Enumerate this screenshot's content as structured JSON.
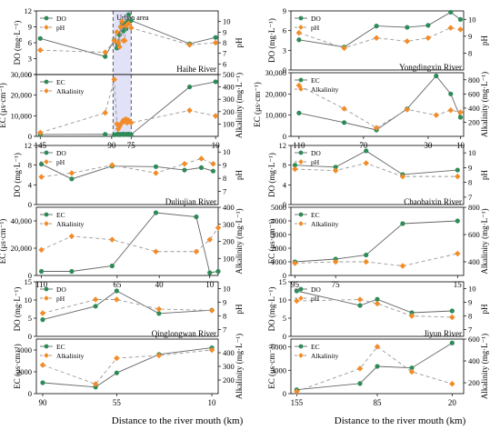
{
  "xlabel": "Distance to the river mouth (km)",
  "colors": {
    "do": "#2e8b57",
    "ph": "#f28c28",
    "line_do": "#666666",
    "line_ph": "#999999",
    "urban": "#c9c9f3"
  },
  "chart_data": [
    {
      "type": "line",
      "river": "Haihe River",
      "annotation": "Urban area",
      "urban_range": [
        89,
        75
      ],
      "xticks": [
        145,
        90,
        75,
        10
      ],
      "xlim": [
        148,
        8
      ],
      "top": {
        "ylabel_left": "DO (mg·L⁻¹)",
        "ylabel_right": "pH",
        "ylim_left": [
          0,
          12
        ],
        "ylim_right": [
          5,
          11
        ],
        "ticks_left": [
          0,
          3,
          6,
          9,
          12
        ],
        "ticks_right": [
          6,
          7,
          8,
          9,
          10
        ],
        "series": [
          {
            "name": "DO",
            "x": [
              145,
              95,
              88,
              86,
              85,
              84,
              83,
              82,
              81,
              80,
              79,
              78,
              77,
              75,
              30,
              10
            ],
            "values": [
              6.8,
              3.4,
              6.5,
              5.0,
              5.6,
              7.5,
              9.0,
              9.8,
              8.2,
              9.6,
              8.6,
              9.9,
              11.3,
              10.2,
              5.8,
              7.0
            ]
          },
          {
            "name": "pH",
            "x": [
              145,
              95,
              88,
              86,
              85,
              84,
              83,
              82,
              81,
              80,
              79,
              78,
              77,
              75,
              30,
              10
            ],
            "values": [
              7.3,
              7.1,
              8.2,
              9.0,
              8.0,
              7.6,
              9.5,
              10.0,
              8.2,
              8.2,
              9.6,
              9.7,
              9.8,
              9.4,
              7.8,
              8.0
            ]
          }
        ]
      },
      "bottom": {
        "ylabel_left": "EC (μs·cm⁻¹)",
        "ylabel_right": "Alkalinity (mg·L⁻¹)",
        "ylim_left": [
          0,
          30000
        ],
        "ylim_right": [
          0,
          500
        ],
        "ticks_left": [
          0,
          10000,
          20000,
          30000
        ],
        "ticks_left_labels": [
          "0",
          "10,000",
          "20,000",
          "30,000"
        ],
        "ticks_right": [
          100,
          200,
          300,
          400,
          500
        ],
        "series": [
          {
            "name": "EC",
            "x": [
              145,
              95,
              88,
              86,
              85,
              84,
              83,
              82,
              81,
              80,
              79,
              78,
              77,
              75,
              30,
              10
            ],
            "values": [
              900,
              1000,
              800,
              900,
              1100,
              800,
              1000,
              900,
              1100,
              900,
              1000,
              1000,
              1100,
              900,
              24000,
              26500
            ]
          },
          {
            "name": "Alkalinity",
            "x": [
              145,
              95,
              88,
              86,
              85,
              84,
              83,
              82,
              81,
              80,
              79,
              78,
              77,
              75,
              30,
              10
            ],
            "values": [
              30,
              190,
              460,
              100,
              60,
              80,
              100,
              110,
              130,
              120,
              140,
              110,
              130,
              110,
              210,
              165
            ]
          }
        ]
      }
    },
    {
      "type": "line",
      "river": "Yongdingxin River",
      "xticks": [
        110,
        70,
        30,
        10
      ],
      "xlim": [
        115,
        8
      ],
      "top": {
        "ylabel_left": "DO (mg·L⁻¹)",
        "ylabel_right": "pH",
        "ylim_left": [
          0,
          9
        ],
        "ylim_right": [
          7,
          10.5
        ],
        "ticks_left": [
          0,
          3,
          6,
          9
        ],
        "ticks_right": [
          8,
          9,
          10
        ],
        "series": [
          {
            "name": "DO",
            "x": [
              110,
              82,
              62,
              43,
              30,
              16,
              10
            ],
            "values": [
              4.6,
              3.5,
              6.7,
              6.5,
              6.8,
              8.8,
              7.7
            ]
          },
          {
            "name": "pH",
            "x": [
              110,
              82,
              62,
              43,
              30,
              16,
              10
            ],
            "values": [
              9.2,
              8.3,
              8.9,
              8.7,
              8.9,
              9.5,
              9.4
            ]
          }
        ]
      },
      "bottom": {
        "ylabel_left": "EC (μs·cm⁻¹)",
        "ylabel_right": "Alkalinity (mg·L⁻¹)",
        "ylim_left": [
          0,
          30000
        ],
        "ylim_right": [
          0,
          900
        ],
        "ticks_left": [
          0,
          10000,
          20000,
          30000
        ],
        "ticks_left_labels": [
          "0",
          "10,000",
          "20,000",
          "30,000"
        ],
        "ticks_right": [
          200,
          400,
          600,
          800
        ],
        "series": [
          {
            "name": "EC",
            "x": [
              110,
              82,
              62,
              43,
              25,
              16,
              10
            ],
            "values": [
              11000,
              6500,
              3000,
              13000,
              28500,
              20000,
              9000
            ]
          },
          {
            "name": "Alkalinity",
            "x": [
              110,
              82,
              62,
              43,
              25,
              16,
              10
            ],
            "values": [
              720,
              390,
              120,
              380,
              300,
              370,
              340
            ]
          }
        ]
      }
    },
    {
      "type": "line",
      "river": "Duliujian River",
      "xticks": [
        110,
        65,
        40,
        10
      ],
      "xlim": [
        113,
        5
      ],
      "top": {
        "ylabel_left": "DO (mg·L⁻¹)",
        "ylabel_right": "pH",
        "ylim_left": [
          0,
          12
        ],
        "ylim_right": [
          6,
          10.5
        ],
        "ticks_left": [
          0,
          4,
          8,
          12
        ],
        "ticks_right": [
          7,
          8,
          9,
          10
        ],
        "series": [
          {
            "name": "DO",
            "x": [
              110,
              92,
              68,
              42,
              25,
              15,
              8
            ],
            "values": [
              8.2,
              5.2,
              7.8,
              7.7,
              7.0,
              7.5,
              6.8
            ]
          },
          {
            "name": "pH",
            "x": [
              110,
              92,
              68,
              42,
              25,
              15,
              8
            ],
            "values": [
              8.1,
              8.4,
              9.0,
              8.4,
              9.1,
              9.5,
              9.1
            ]
          }
        ]
      },
      "bottom": {
        "ylabel_left": "EC (μs·cm⁻¹)",
        "ylabel_right": "Alkalinity (mg·L⁻¹)",
        "ylim_left": [
          0,
          50000
        ],
        "ylim_right": [
          0,
          400
        ],
        "ticks_left": [
          0,
          20000,
          40000
        ],
        "ticks_left_labels": [
          "0",
          "20,000",
          "40,000"
        ],
        "ticks_right": [
          100,
          200,
          300,
          400
        ],
        "series": [
          {
            "name": "EC",
            "x": [
              110,
              92,
              68,
              42,
              18,
              10,
              5
            ],
            "values": [
              3000,
              3000,
              7000,
              46000,
              43000,
              2000,
              3000
            ]
          },
          {
            "name": "Alkalinity",
            "x": [
              110,
              92,
              68,
              42,
              18,
              10,
              5
            ],
            "values": [
              150,
              230,
              210,
              140,
              140,
              210,
              280
            ]
          }
        ]
      }
    },
    {
      "type": "line",
      "river": "Chaobaixin River",
      "xticks": [
        95,
        75,
        15
      ],
      "xlim": [
        97,
        12
      ],
      "top": {
        "ylabel_left": "DO (mg·L⁻¹)",
        "ylabel_right": "pH",
        "ylim_left": [
          0,
          12
        ],
        "ylim_right": [
          6.5,
          10.5
        ],
        "ticks_left": [
          0,
          4,
          8,
          12
        ],
        "ticks_right": [
          7,
          8,
          9,
          10
        ],
        "series": [
          {
            "name": "DO",
            "x": [
              95,
              75,
              60,
              42,
              15
            ],
            "values": [
              8.0,
              7.6,
              10.9,
              6.1,
              7.0
            ]
          },
          {
            "name": "pH",
            "x": [
              95,
              75,
              60,
              42,
              15
            ],
            "values": [
              8.9,
              8.8,
              9.3,
              8.4,
              8.4
            ]
          }
        ]
      },
      "bottom": {
        "ylabel_left": "EC (μs·cm⁻¹)",
        "ylabel_right": "Alkalinity (mg·L⁻¹)",
        "ylim_left": [
          0,
          5000
        ],
        "ylim_right": [
          300,
          800
        ],
        "ticks_left": [
          0,
          1000,
          2000,
          3000,
          4000,
          5000
        ],
        "ticks_left_labels": [
          "0",
          "1000",
          "2000",
          "3000",
          "4000",
          "5000"
        ],
        "ticks_right": [
          400,
          600,
          800
        ],
        "series": [
          {
            "name": "EC",
            "x": [
              95,
              75,
              60,
              42,
              15
            ],
            "values": [
              1000,
              1200,
              1500,
              3800,
              4000
            ]
          },
          {
            "name": "Alkalinity",
            "x": [
              95,
              75,
              60,
              42,
              15
            ],
            "values": [
              390,
              400,
              400,
              370,
              460
            ]
          }
        ]
      }
    },
    {
      "type": "line",
      "river": "Qinglongwan River",
      "xticks": [
        90,
        55,
        10
      ],
      "xlim": [
        93,
        7
      ],
      "top": {
        "ylabel_left": "DO (mg·L⁻¹)",
        "ylabel_right": "pH",
        "ylim_left": [
          0,
          15
        ],
        "ylim_right": [
          6.5,
          10.5
        ],
        "ticks_left": [
          0,
          5,
          10,
          15
        ],
        "ticks_right": [
          7,
          8,
          9,
          10
        ],
        "series": [
          {
            "name": "DO",
            "x": [
              90,
              65,
              55,
              35,
              10
            ],
            "values": [
              4.6,
              8.3,
              12.5,
              6.3,
              7.2
            ]
          },
          {
            "name": "pH",
            "x": [
              90,
              65,
              55,
              35,
              10
            ],
            "values": [
              8.2,
              9.2,
              9.2,
              8.5,
              8.4
            ]
          }
        ]
      },
      "bottom": {
        "ylabel_left": "EC (μs·cm⁻¹)",
        "ylabel_right": "Alkalinity (mg·L⁻¹)",
        "ylim_left": [
          0,
          5000
        ],
        "ylim_right": [
          100,
          500
        ],
        "ticks_left": [
          0,
          2000,
          4000
        ],
        "ticks_left_labels": [
          "0",
          "2000",
          "4000"
        ],
        "ticks_right": [
          200,
          300,
          400
        ],
        "series": [
          {
            "name": "EC",
            "x": [
              90,
              65,
              55,
              35,
              10
            ],
            "values": [
              1000,
              600,
              1900,
              3600,
              4200
            ]
          },
          {
            "name": "Alkalinity",
            "x": [
              90,
              65,
              55,
              35,
              10
            ],
            "values": [
              310,
              170,
              360,
              380,
              420
            ]
          }
        ]
      }
    },
    {
      "type": "line",
      "river": "Jiyun River",
      "xticks": [
        155,
        85,
        20
      ],
      "xlim": [
        160,
        10
      ],
      "top": {
        "ylabel_left": "DO (mg·L⁻¹)",
        "ylabel_right": "pH",
        "ylim_left": [
          0,
          15
        ],
        "ylim_right": [
          6.5,
          10.5
        ],
        "ticks_left": [
          0,
          5,
          10,
          15
        ],
        "ticks_right": [
          7,
          8,
          9,
          10
        ],
        "series": [
          {
            "name": "DO",
            "x": [
              155,
              100,
              85,
              55,
              20
            ],
            "values": [
              12.5,
              8.5,
              10.2,
              6.5,
              7.0
            ]
          },
          {
            "name": "pH",
            "x": [
              155,
              100,
              85,
              55,
              20
            ],
            "values": [
              9.1,
              9.2,
              8.9,
              8.0,
              7.9
            ]
          }
        ]
      },
      "bottom": {
        "ylabel_left": "EC (μs·cm⁻¹)",
        "ylabel_right": "Alkalinity (mg·L⁻¹)",
        "ylim_left": [
          0,
          7000
        ],
        "ylim_right": [
          100,
          600
        ],
        "ticks_left": [
          0,
          3000,
          6000
        ],
        "ticks_left_labels": [
          "0",
          "3000",
          "6000"
        ],
        "ticks_right": [
          200,
          400,
          600
        ],
        "series": [
          {
            "name": "EC",
            "x": [
              155,
              100,
              85,
              55,
              20
            ],
            "values": [
              500,
              1300,
              3500,
              3300,
              6500
            ]
          },
          {
            "name": "Alkalinity",
            "x": [
              155,
              100,
              85,
              55,
              20
            ],
            "values": [
              120,
              330,
              530,
              300,
              190
            ]
          }
        ]
      }
    }
  ]
}
